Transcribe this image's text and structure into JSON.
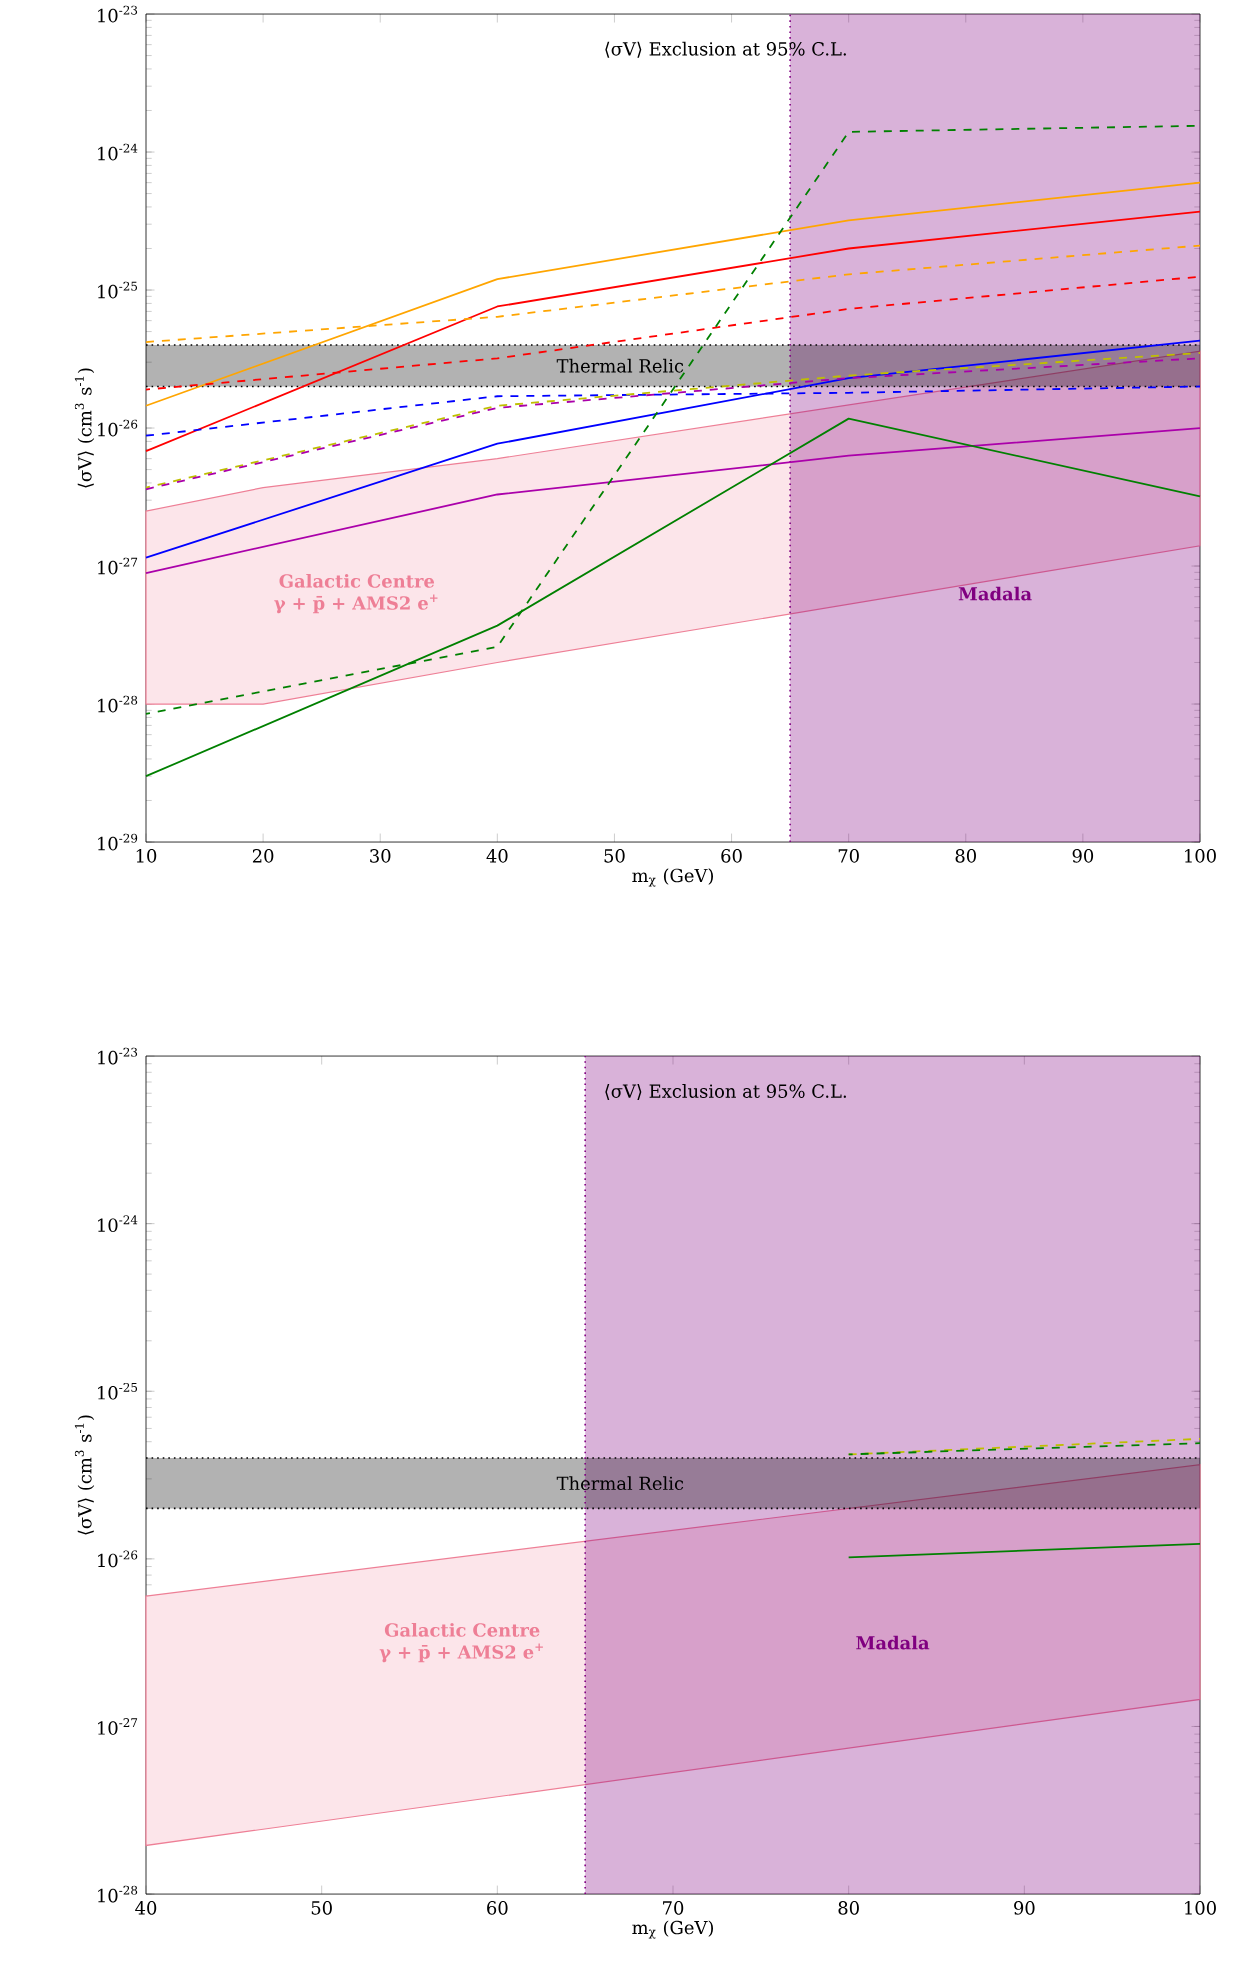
{
  "chart_data": [
    {
      "type": "line",
      "title": "⟨σV⟩ Exclusion at 95% C.L.",
      "xlabel": "m$_{χ}$ (GeV)",
      "ylabel": "⟨σV⟩ (cm$^{3}$ s$^{-1}$)",
      "log": "y",
      "xlim": [
        10,
        100
      ],
      "ylim": [
        1e-29,
        1e-23
      ],
      "xticks": [
        10,
        20,
        30,
        40,
        50,
        60,
        70,
        80,
        90,
        100
      ],
      "yticks": [
        {
          "value": 1e-29,
          "label": "10$^{-29}$"
        },
        {
          "value": 1e-28,
          "label": "10$^{-28}$"
        },
        {
          "value": 1e-27,
          "label": "10$^{-27}$"
        },
        {
          "value": 1e-26,
          "label": "10$^{-26}$"
        },
        {
          "value": 1e-25,
          "label": "10$^{-25}$"
        },
        {
          "value": 1e-24,
          "label": "10$^{-24}$"
        },
        {
          "value": 1e-23,
          "label": "10$^{-23}$"
        }
      ],
      "x": [
        10,
        40,
        70,
        100
      ],
      "series": [
        {
          "type": "area",
          "name": "Galactic Centre γ + p̄ + AMS2 e$^{+}$",
          "color": "#ee7f96",
          "x": [
            10,
            20,
            40,
            100
          ],
          "values": [
            null,
            null,
            null,
            null
          ],
          "lower": [
            1e-28,
            1e-28,
            2e-28,
            1.4e-27
          ],
          "upper": [
            2.5e-27,
            3.7e-27,
            6e-27,
            3.6e-26
          ]
        },
        {
          "color": "#ffa500",
          "line_style": "solid",
          "values": [
            1.45e-26,
            1.2e-25,
            3.2e-25,
            6e-25
          ]
        },
        {
          "color": "#ff0000",
          "line_style": "solid",
          "values": [
            6.8e-27,
            7.6e-26,
            2e-25,
            3.7e-25
          ]
        },
        {
          "color": "#ffa500",
          "line_style": "dashed",
          "values": [
            4.2e-26,
            6.4e-26,
            1.3e-25,
            2.1e-25
          ]
        },
        {
          "color": "#ff0000",
          "line_style": "dashed",
          "values": [
            1.9e-26,
            3.2e-26,
            7.3e-26,
            1.25e-25
          ]
        },
        {
          "color": "#0000ff",
          "line_style": "solid",
          "values": [
            1.15e-27,
            7.7e-27,
            2.3e-26,
            4.3e-26
          ]
        },
        {
          "color": "#0000ff",
          "line_style": "dashed",
          "values": [
            8.8e-27,
            1.7e-26,
            1.8e-26,
            2e-26
          ]
        },
        {
          "color": "#bfbf00",
          "line_style": "dashed",
          "values": [
            3.7e-27,
            1.45e-26,
            2.4e-26,
            3.5e-26
          ]
        },
        {
          "color": "#aa00aa",
          "line_style": "dashed",
          "values": [
            3.6e-27,
            1.4e-26,
            2.3e-26,
            3.2e-26
          ]
        },
        {
          "color": "#aa00aa",
          "line_style": "solid",
          "values": [
            8.9e-28,
            3.3e-27,
            6.3e-27,
            1e-26
          ]
        },
        {
          "color": "#008000",
          "line_style": "solid",
          "values": [
            3e-29,
            3.7e-28,
            1.17e-26,
            3.2e-27
          ]
        },
        {
          "color": "#008000",
          "line_style": "dashed",
          "values": [
            8.5e-29,
            2.6e-28,
            1.4e-24,
            1.55e-24
          ]
        }
      ],
      "bands": [
        {
          "axis": "x",
          "from": 65,
          "to": 100,
          "label": "Madala",
          "color": "#800080"
        },
        {
          "axis": "y",
          "from": 2e-26,
          "to": 4e-26,
          "label": "Thermal Relic",
          "color": "#000000"
        }
      ],
      "ref_lines": [
        {
          "axis": "x",
          "value": 65,
          "color": "#800080",
          "line_style": "dotted"
        },
        {
          "axis": "y",
          "value": 2e-26,
          "color": "#000000",
          "line_style": "dotted"
        },
        {
          "axis": "y",
          "value": 4e-26,
          "color": "#000000",
          "line_style": "dotted"
        }
      ]
    },
    {
      "type": "line",
      "title": "⟨σV⟩ Exclusion at 95% C.L.",
      "xlabel": "m$_{χ}$ (GeV)",
      "ylabel": "⟨σV⟩ (cm$^{3}$ s$^{-1}$)",
      "log": "y",
      "xlim": [
        40,
        100
      ],
      "ylim": [
        1e-28,
        1e-23
      ],
      "xticks": [
        40,
        50,
        60,
        70,
        80,
        90,
        100
      ],
      "yticks": [
        {
          "value": 1e-28,
          "label": "10$^{-28}$"
        },
        {
          "value": 1e-27,
          "label": "10$^{-27}$"
        },
        {
          "value": 1e-26,
          "label": "10$^{-26}$"
        },
        {
          "value": 1e-25,
          "label": "10$^{-25}$"
        },
        {
          "value": 1e-24,
          "label": "10$^{-24}$"
        },
        {
          "value": 1e-23,
          "label": "10$^{-23}$"
        }
      ],
      "x": [
        80,
        100
      ],
      "series": [
        {
          "type": "area",
          "name": "Galactic Centre γ + p̄ + AMS2 e$^{+}$",
          "color": "#ee7f96",
          "x": [
            40,
            100
          ],
          "values": [
            null,
            null
          ],
          "lower": [
            1.95e-28,
            1.45e-27
          ],
          "upper": [
            6e-27,
            3.65e-26
          ]
        },
        {
          "color": "#bfbf00",
          "line_style": "dashed",
          "values": [
            4.2e-26,
            5.2e-26
          ]
        },
        {
          "color": "#008000",
          "line_style": "dashed",
          "values": [
            4.2e-26,
            4.9e-26
          ]
        },
        {
          "color": "#008000",
          "line_style": "solid",
          "values": [
            1.02e-26,
            1.23e-26
          ]
        }
      ],
      "bands": [
        {
          "axis": "x",
          "from": 65,
          "to": 100,
          "label": "Madala",
          "color": "#800080"
        },
        {
          "axis": "y",
          "from": 2e-26,
          "to": 4e-26,
          "label": "Thermal Relic",
          "color": "#000000"
        }
      ],
      "ref_lines": [
        {
          "axis": "x",
          "value": 65,
          "color": "#800080",
          "line_style": "dotted"
        },
        {
          "axis": "y",
          "value": 2e-26,
          "color": "#000000",
          "line_style": "dotted"
        },
        {
          "axis": "y",
          "value": 4e-26,
          "color": "#000000",
          "line_style": "dotted"
        }
      ]
    }
  ]
}
